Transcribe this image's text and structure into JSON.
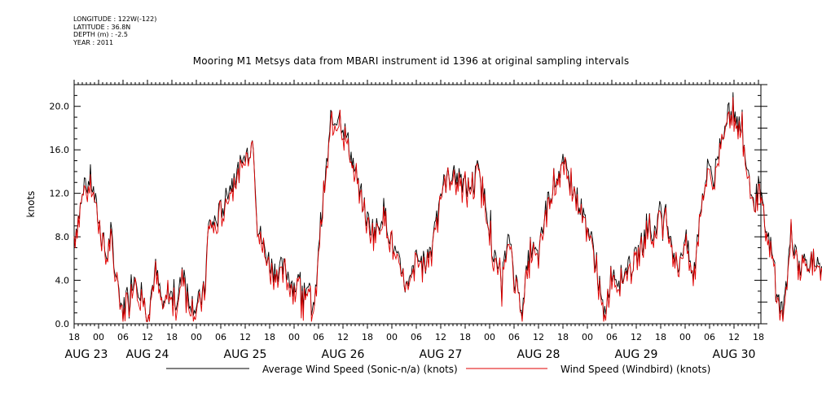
{
  "header": {
    "longitude": "LONGITUDE : 122W(-122)",
    "latitude": "LATITUDE : 36.8N",
    "depth": "DEPTH (m) : -2.5",
    "year": "YEAR : 2011",
    "title": "Mooring M1 Metsys data from MBARI instrument id 1396 at original sampling intervals"
  },
  "colors": {
    "series_average": "#000000",
    "series_windbird": "#e00000"
  },
  "chart_data": {
    "type": "line",
    "title": "Mooring M1 Metsys data from MBARI instrument id 1396 at original sampling intervals",
    "ylabel": "knots",
    "xlabel": "",
    "ylim": [
      0,
      22
    ],
    "xlim_hours": [
      0,
      168
    ],
    "y_ticks": [
      "0.0",
      "4.0",
      "8.0",
      "12.0",
      "16.0",
      "20.0"
    ],
    "y_tick_values": [
      0,
      4,
      8,
      12,
      16,
      20
    ],
    "x_ticks": [
      "18",
      "00",
      "06",
      "12",
      "18",
      "00",
      "06",
      "12",
      "18",
      "00",
      "06",
      "12",
      "18",
      "00",
      "06",
      "12",
      "18",
      "00",
      "06",
      "12",
      "18",
      "00",
      "06",
      "12",
      "18",
      "00",
      "06",
      "12",
      "18"
    ],
    "date_labels": [
      {
        "label": "AUG 23",
        "tick_index": 0
      },
      {
        "label": "AUG 24",
        "tick_index": 3
      },
      {
        "label": "AUG 25",
        "tick_index": 7
      },
      {
        "label": "AUG 26",
        "tick_index": 11
      },
      {
        "label": "AUG 27",
        "tick_index": 15
      },
      {
        "label": "AUG 28",
        "tick_index": 19
      },
      {
        "label": "AUG 29",
        "tick_index": 23
      },
      {
        "label": "AUG 30",
        "tick_index": 27
      }
    ],
    "grid": false,
    "legend_placement": "bottom",
    "series": [
      {
        "name": "Average Wind Speed (Sonic-n/a) (knots)",
        "hours": [
          0,
          2,
          4,
          6,
          8,
          9,
          10,
          12,
          13,
          15,
          18,
          20,
          22,
          23,
          25,
          27,
          28,
          30,
          32,
          33,
          35,
          36,
          38,
          41,
          44,
          45,
          47,
          49,
          52,
          54,
          56,
          58,
          59,
          60,
          61,
          63,
          65,
          67,
          69,
          71,
          72,
          74,
          76,
          78,
          80,
          82,
          84,
          86,
          88,
          89,
          91,
          93,
          95,
          97,
          99,
          101,
          103,
          105,
          107,
          108,
          110,
          112,
          114,
          116,
          118,
          120,
          122,
          124,
          126,
          128,
          130,
          132,
          134,
          136,
          138,
          140,
          141,
          142,
          144,
          146,
          148,
          150,
          152,
          154,
          156,
          157,
          158,
          160,
          162,
          164,
          166,
          167
        ],
        "values": [
          8.0,
          11.5,
          13.5,
          9.5,
          6.0,
          8.5,
          5.0,
          1.0,
          3.0,
          4.5,
          1.0,
          5.0,
          1.0,
          3.0,
          2.0,
          5.0,
          2.5,
          1.5,
          3.0,
          9.0,
          9.5,
          10.5,
          12.5,
          14.5,
          17.0,
          9.0,
          6.5,
          5.0,
          5.0,
          3.5,
          4.0,
          2.5,
          1.0,
          7.5,
          11.0,
          18.0,
          19.5,
          17.0,
          14.0,
          11.0,
          9.5,
          8.5,
          10.5,
          7.5,
          5.0,
          3.0,
          6.0,
          5.5,
          7.5,
          11.0,
          13.0,
          14.0,
          13.0,
          12.5,
          14.0,
          11.5,
          6.0,
          4.5,
          8.0,
          4.5,
          1.5,
          7.0,
          6.0,
          11.0,
          13.5,
          14.5,
          13.0,
          11.0,
          9.0,
          6.0,
          0.5,
          5.0,
          4.0,
          5.0,
          6.0,
          8.0,
          9.5,
          8.0,
          10.5,
          9.0,
          5.0,
          8.0,
          4.0,
          11.5,
          15.0,
          13.0,
          15.5,
          19.0,
          19.5,
          17.5,
          13.0,
          11.0
        ],
        "tail_hours": [
          167,
          168,
          169,
          170,
          171,
          172,
          173,
          174,
          175,
          176,
          178,
          180,
          182,
          184
        ],
        "tail_values": [
          11.0,
          12.5,
          10.5,
          8.0,
          7.0,
          5.0,
          2.0,
          1.0,
          4.0,
          8.5,
          5.5,
          6.0,
          5.5,
          3.8
        ]
      },
      {
        "name": "Wind Speed (Windbird) (knots)",
        "offset_knots": -0.4
      }
    ]
  },
  "legend": {
    "average": "Average Wind Speed (Sonic-n/a) (knots)",
    "windbird": "Wind Speed (Windbird) (knots)"
  }
}
